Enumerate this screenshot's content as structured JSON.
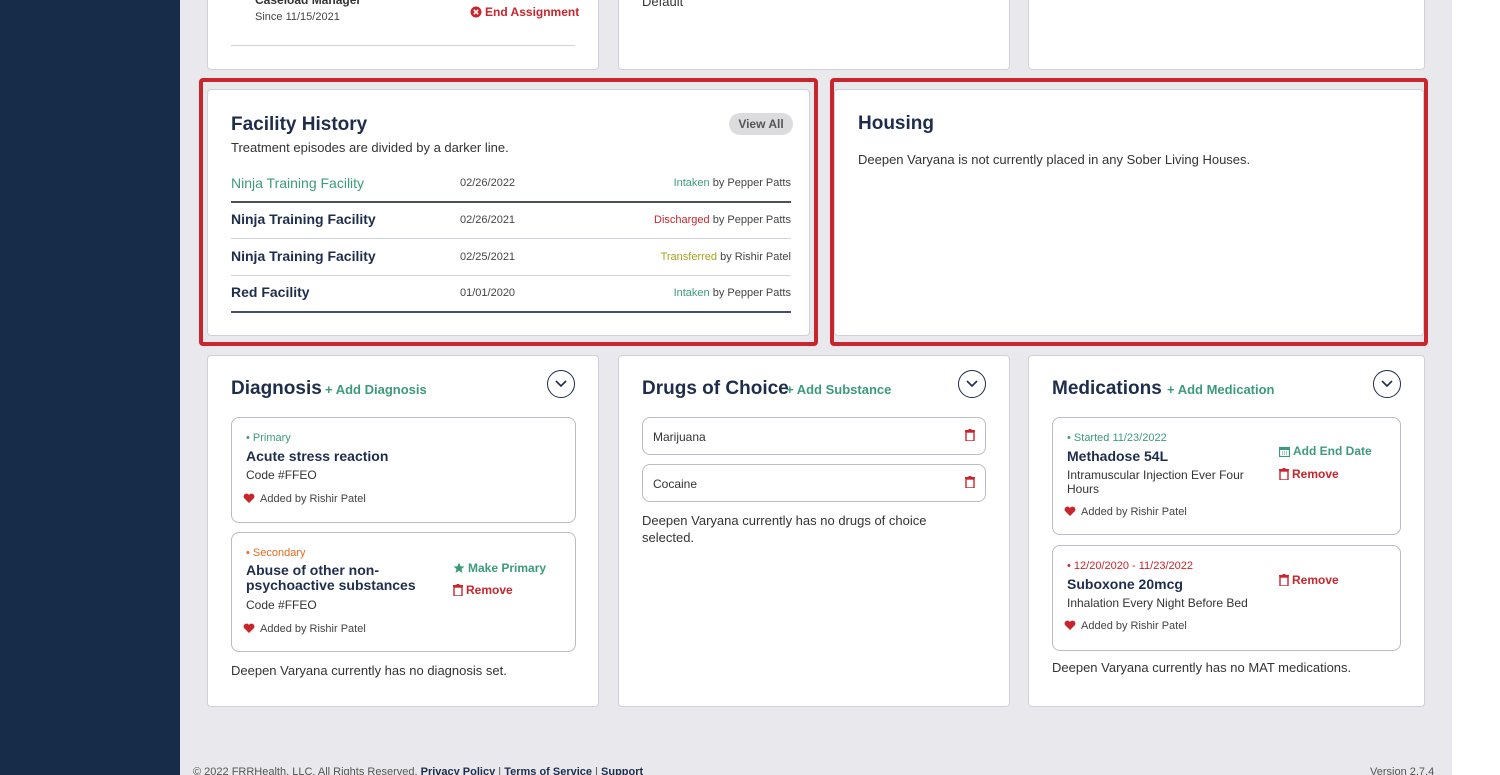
{
  "top_cards": {
    "caseload": {
      "role": "Caseload Manager",
      "since": "Since 11/15/2021",
      "end_label": "End Assignment"
    },
    "middle": {
      "text": "Default"
    }
  },
  "facility_history": {
    "title": "Facility History",
    "view_all": "View All",
    "subtitle": "Treatment episodes are divided by a darker line.",
    "rows": [
      {
        "name": "Ninja Training Facility",
        "date": "02/26/2022",
        "action": "Intaken",
        "by": "by Pepper Patts",
        "action_color": "#3c9b7a"
      },
      {
        "name": "Ninja Training Facility",
        "date": "02/26/2021",
        "action": "Discharged",
        "by": "by Pepper Patts",
        "action_color": "#c8252c"
      },
      {
        "name": "Ninja Training Facility",
        "date": "02/25/2021",
        "action": "Transferred",
        "by": "by Rishir Patel",
        "action_color": "#a6a21d"
      },
      {
        "name": "Red Facility",
        "date": "01/01/2020",
        "action": "Intaken",
        "by": "by Pepper Patts",
        "action_color": "#3c9b7a"
      }
    ]
  },
  "housing": {
    "title": "Housing",
    "text": "Deepen Varyana is not currently placed in any Sober Living Houses."
  },
  "diagnosis": {
    "title": "Diagnosis",
    "add_label": "+ Add Diagnosis",
    "items": [
      {
        "tag": "Primary",
        "name": "Acute stress reaction",
        "code": "Code #FFEO",
        "added": "Added by Rishir Patel"
      },
      {
        "tag": "Secondary",
        "name_line1": "Abuse of other non-",
        "name_line2": "psychoactive substances",
        "code": "Code #FFEO",
        "added": "Added by Rishir Patel",
        "make_primary": "Make Primary",
        "remove": "Remove"
      }
    ],
    "empty_text": "Deepen Varyana currently has no diagnosis set."
  },
  "drugs": {
    "title": "Drugs of Choice",
    "add_label": "+ Add Substance",
    "items": [
      "Marijuana",
      "Cocaine"
    ],
    "empty_line1": "Deepen Varyana currently has no drugs of choice",
    "empty_line2": "selected."
  },
  "medications": {
    "title": "Medications",
    "add_label": "+ Add Medication",
    "items": [
      {
        "status": "Started 11/23/2022",
        "name": "Methadose 54L",
        "detail_line1": "Intramuscular Injection Ever Four",
        "detail_line2": "Hours",
        "added": "Added by Rishir Patel",
        "add_end": "Add End Date",
        "remove": "Remove"
      },
      {
        "status": "12/20/2020 - 11/23/2022",
        "name": "Suboxone 20mcg",
        "detail_line1": "Inhalation Every Night Before Bed",
        "added": "Added by Rishir Patel",
        "remove": "Remove"
      }
    ],
    "empty_text": "Deepen Varyana currently has no MAT medications."
  },
  "footer": {
    "copyright": "© 2022 FRRHealth, LLC. All Rights Reserved.",
    "privacy": "Privacy Policy",
    "terms": "Terms of Service",
    "support": "Support",
    "version": "Version 2.7.4"
  }
}
